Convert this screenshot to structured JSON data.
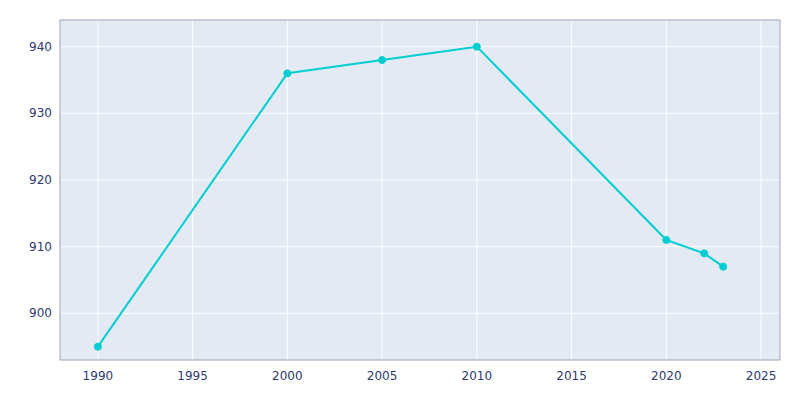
{
  "chart_data": {
    "type": "line",
    "x": [
      1990,
      2000,
      2005,
      2010,
      2020,
      2022,
      2023
    ],
    "values": [
      895,
      936,
      938,
      940,
      911,
      909,
      907
    ],
    "color": "#00CED1",
    "marker": "circle",
    "xlim": [
      1988,
      2026
    ],
    "ylim": [
      893,
      944
    ],
    "xticks": [
      1990,
      1995,
      2000,
      2005,
      2010,
      2015,
      2020,
      2025
    ],
    "yticks": [
      900,
      910,
      920,
      930,
      940
    ],
    "grid": true
  }
}
